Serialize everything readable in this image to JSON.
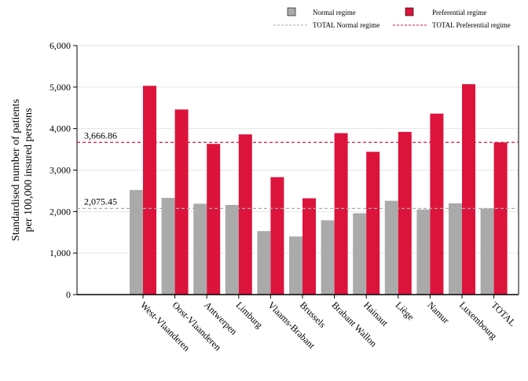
{
  "chart_data": {
    "type": "bar",
    "title": "",
    "xlabel": "",
    "ylabel_lines": [
      "Standardised number of patients",
      "per 100,000 insured persons"
    ],
    "ylim": [
      0,
      6000
    ],
    "yticks": [
      "0",
      "1,000",
      "2,000",
      "3,000",
      "4,000",
      "5,000",
      "6,000"
    ],
    "ytick_values": [
      0,
      1000,
      2000,
      3000,
      4000,
      5000,
      6000
    ],
    "grid": "horizontal",
    "legend_position": "top-right",
    "categories": [
      "West-Vlaanderen",
      "Oost-Vlaanderen",
      "Antwerpen",
      "Limburg",
      "Vlaams-Brabant",
      "Brussels",
      "Brabant Wallon",
      "Hainaut",
      "Liège",
      "Namur",
      "Luxembourg",
      "TOTAL"
    ],
    "series": [
      {
        "name": "Normal regime",
        "color": "#aaaaaa",
        "values": [
          2520,
          2330,
          2190,
          2160,
          1530,
          1400,
          1790,
          1960,
          2260,
          2050,
          2200,
          2075.45
        ]
      },
      {
        "name": "Preferential regime",
        "color": "#dc143c",
        "values": [
          5030,
          4460,
          3630,
          3860,
          2830,
          2320,
          3890,
          3440,
          3920,
          4360,
          5070,
          3666.86
        ]
      }
    ],
    "reference_lines": [
      {
        "name": "TOTAL Normal regime",
        "value": 2075.45,
        "label": "2,075.45",
        "color": "#aaaaaa"
      },
      {
        "name": "TOTAL Preferential regime",
        "value": 3666.86,
        "label": "3,666.86",
        "color": "#dc143c"
      }
    ]
  }
}
